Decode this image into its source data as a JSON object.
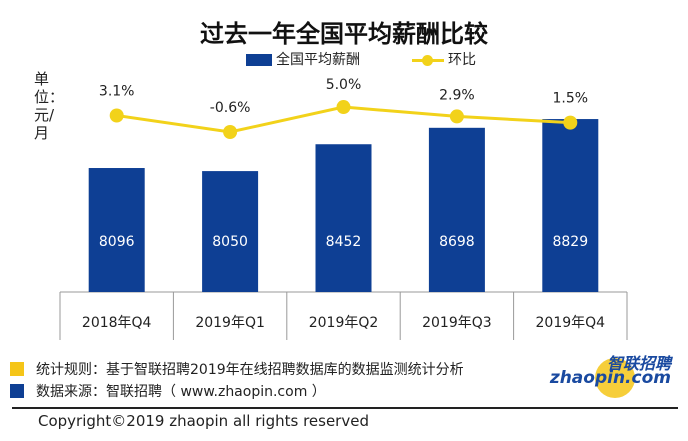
{
  "chart_data": {
    "type": "bar+line",
    "title": "过去一年全国平均薪酬比较",
    "ylabel": "单位：元/月",
    "categories": [
      "2018年Q4",
      "2019年Q1",
      "2019年Q2",
      "2019年Q3",
      "2019年Q4"
    ],
    "series": [
      {
        "name": "全国平均薪酬",
        "type": "bar",
        "color": "#0e3f94",
        "values": [
          8096,
          8050,
          8452,
          8698,
          8829
        ]
      },
      {
        "name": "环比",
        "type": "line",
        "color": "#f2d21a",
        "values": [
          3.1,
          -0.6,
          5.0,
          2.9,
          1.5
        ],
        "labels": [
          "3.1%",
          "-0.6%",
          "5.0%",
          "2.9%",
          "1.5%"
        ]
      }
    ],
    "legend": "top",
    "grid": false
  },
  "footer": {
    "rule": "统计规则：基于智联招聘2019年在线招聘数据库的数据监测统计分析",
    "source": "数据来源：智联招聘（ www.zhaopin.com ）",
    "copyright": "Copyright©2019 zhaopin all rights reserved",
    "logo_cn": "智联招聘",
    "logo_en": "zhaopin.com"
  },
  "colors": {
    "bar": "#0e3f94",
    "line": "#f2d21a",
    "legend_line": "#e0c400"
  }
}
